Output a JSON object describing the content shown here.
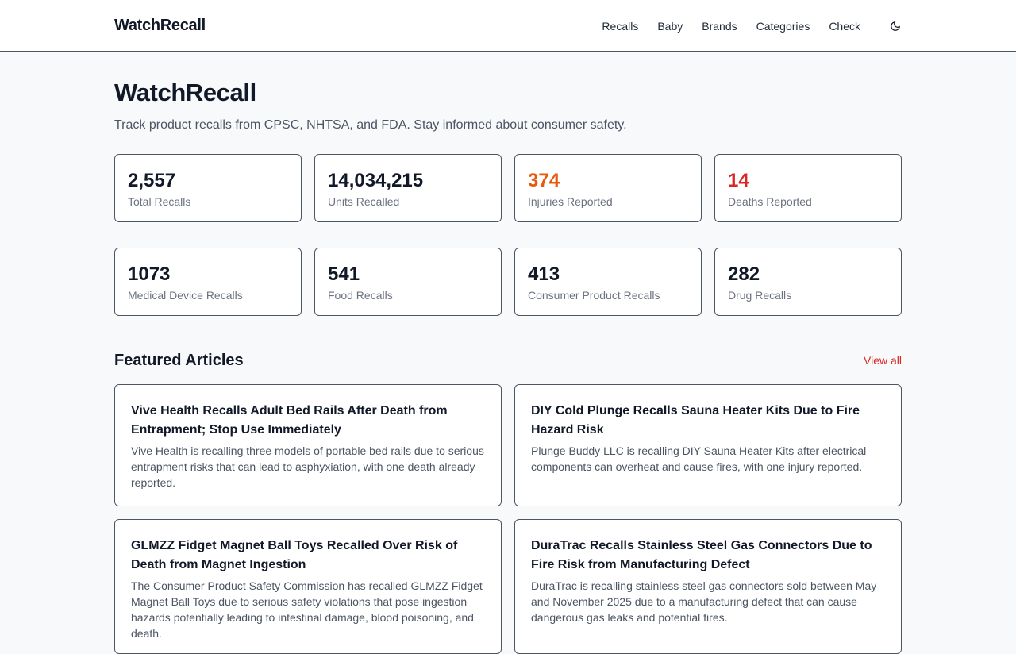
{
  "header": {
    "brand": "WatchRecall",
    "nav": [
      "Recalls",
      "Baby",
      "Brands",
      "Categories",
      "Check"
    ],
    "theme_icon": "moon-icon"
  },
  "hero": {
    "title": "WatchRecall",
    "subtitle": "Track product recalls from CPSC, NHTSA, and FDA. Stay informed about consumer safety."
  },
  "stats_primary": [
    {
      "value": "2,557",
      "label": "Total Recalls",
      "color": "#111827"
    },
    {
      "value": "14,034,215",
      "label": "Units Recalled",
      "color": "#111827"
    },
    {
      "value": "374",
      "label": "Injuries Reported",
      "color": "#ea580c"
    },
    {
      "value": "14",
      "label": "Deaths Reported",
      "color": "#dc2626"
    }
  ],
  "stats_secondary": [
    {
      "value": "1073",
      "label": "Medical Device Recalls"
    },
    {
      "value": "541",
      "label": "Food Recalls"
    },
    {
      "value": "413",
      "label": "Consumer Product Recalls"
    },
    {
      "value": "282",
      "label": "Drug Recalls"
    }
  ],
  "featured": {
    "title": "Featured Articles",
    "view_all": "View all",
    "articles": [
      {
        "title": "Vive Health Recalls Adult Bed Rails After Death from Entrapment; Stop Use Immediately",
        "excerpt": "Vive Health is recalling three models of portable bed rails due to serious entrapment risks that can lead to asphyxiation, with one death already reported."
      },
      {
        "title": "DIY Cold Plunge Recalls Sauna Heater Kits Due to Fire Hazard Risk",
        "excerpt": "Plunge Buddy LLC is recalling DIY Sauna Heater Kits after electrical components can overheat and cause fires, with one injury reported."
      },
      {
        "title": "GLMZZ Fidget Magnet Ball Toys Recalled Over Risk of Death from Magnet Ingestion",
        "excerpt": "The Consumer Product Safety Commission has recalled GLMZZ Fidget Magnet Ball Toys due to serious safety violations that pose ingestion hazards potentially leading to intestinal damage, blood poisoning, and death."
      },
      {
        "title": "DuraTrac Recalls Stainless Steel Gas Connectors Due to Fire Risk from Manufacturing Defect",
        "excerpt": "DuraTrac is recalling stainless steel gas connectors sold between May and November 2025 due to a manufacturing defect that can cause dangerous gas leaks and potential fires."
      }
    ]
  },
  "colors": {
    "accent": "#dc2626",
    "injury": "#ea580c",
    "border": "#4b5563"
  }
}
